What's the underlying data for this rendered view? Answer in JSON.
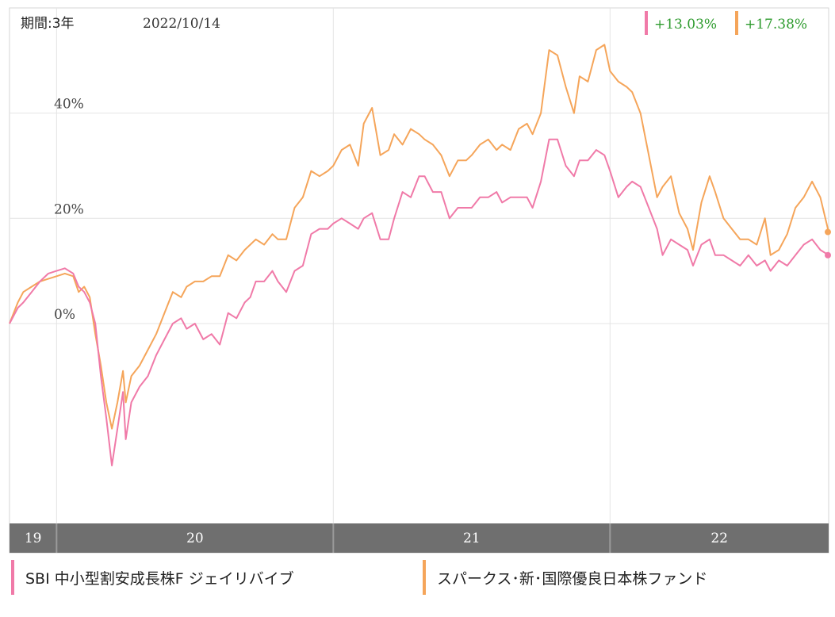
{
  "header": {
    "period_label": "期間:3年",
    "date_label": "2022/10/14"
  },
  "colors": {
    "pink": "#f07aa8",
    "orange": "#f5a55a",
    "return_text": "#2e9b2e",
    "grid": "#e4e4e4",
    "axis_band": "#6f6f6f"
  },
  "chart_data": {
    "type": "line",
    "ylim": [
      -38,
      60
    ],
    "xlim": [
      2019.83,
      2022.79
    ],
    "y_ticks": [
      {
        "value": 0,
        "label": "0%"
      },
      {
        "value": 20,
        "label": "20%"
      },
      {
        "value": 40,
        "label": "40%"
      }
    ],
    "x_ticks": [
      {
        "start": 2019.83,
        "end": 2020.0,
        "label": "19"
      },
      {
        "start": 2020.0,
        "end": 2021.0,
        "label": "20"
      },
      {
        "start": 2021.0,
        "end": 2022.0,
        "label": "21"
      },
      {
        "start": 2022.0,
        "end": 2022.79,
        "label": "22"
      }
    ],
    "series": [
      {
        "name": "SBI 中小型割安成長株F ジェイリバイブ",
        "color": "#f07aa8",
        "final_return": "+13.03%",
        "points": [
          [
            2019.83,
            0
          ],
          [
            2019.86,
            3
          ],
          [
            2019.88,
            4
          ],
          [
            2019.91,
            6
          ],
          [
            2019.94,
            8
          ],
          [
            2019.97,
            9.5
          ],
          [
            2020.0,
            10
          ],
          [
            2020.03,
            10.5
          ],
          [
            2020.06,
            9.5
          ],
          [
            2020.08,
            7
          ],
          [
            2020.1,
            6
          ],
          [
            2020.12,
            4
          ],
          [
            2020.14,
            0
          ],
          [
            2020.16,
            -10
          ],
          [
            2020.18,
            -18
          ],
          [
            2020.2,
            -27
          ],
          [
            2020.22,
            -20
          ],
          [
            2020.24,
            -13
          ],
          [
            2020.25,
            -22
          ],
          [
            2020.27,
            -15
          ],
          [
            2020.3,
            -12
          ],
          [
            2020.33,
            -10
          ],
          [
            2020.36,
            -6
          ],
          [
            2020.39,
            -3
          ],
          [
            2020.42,
            0
          ],
          [
            2020.45,
            1
          ],
          [
            2020.47,
            -1
          ],
          [
            2020.5,
            0
          ],
          [
            2020.53,
            -3
          ],
          [
            2020.56,
            -2
          ],
          [
            2020.59,
            -4
          ],
          [
            2020.62,
            2
          ],
          [
            2020.65,
            1
          ],
          [
            2020.68,
            4
          ],
          [
            2020.7,
            5
          ],
          [
            2020.72,
            8
          ],
          [
            2020.75,
            8
          ],
          [
            2020.78,
            10
          ],
          [
            2020.8,
            8
          ],
          [
            2020.83,
            6
          ],
          [
            2020.86,
            10
          ],
          [
            2020.89,
            11
          ],
          [
            2020.92,
            17
          ],
          [
            2020.95,
            18
          ],
          [
            2020.98,
            18
          ],
          [
            2021.0,
            19
          ],
          [
            2021.03,
            20
          ],
          [
            2021.06,
            19
          ],
          [
            2021.09,
            18
          ],
          [
            2021.11,
            20
          ],
          [
            2021.14,
            21
          ],
          [
            2021.17,
            16
          ],
          [
            2021.2,
            16
          ],
          [
            2021.22,
            20
          ],
          [
            2021.25,
            25
          ],
          [
            2021.28,
            24
          ],
          [
            2021.31,
            28
          ],
          [
            2021.33,
            28
          ],
          [
            2021.36,
            25
          ],
          [
            2021.39,
            25
          ],
          [
            2021.42,
            20
          ],
          [
            2021.45,
            22
          ],
          [
            2021.48,
            22
          ],
          [
            2021.5,
            22
          ],
          [
            2021.53,
            24
          ],
          [
            2021.56,
            24
          ],
          [
            2021.59,
            25
          ],
          [
            2021.61,
            23
          ],
          [
            2021.64,
            24
          ],
          [
            2021.67,
            24
          ],
          [
            2021.7,
            24
          ],
          [
            2021.72,
            22
          ],
          [
            2021.75,
            27
          ],
          [
            2021.78,
            35
          ],
          [
            2021.81,
            35
          ],
          [
            2021.84,
            30
          ],
          [
            2021.87,
            28
          ],
          [
            2021.89,
            31
          ],
          [
            2021.92,
            31
          ],
          [
            2021.95,
            33
          ],
          [
            2021.98,
            32
          ],
          [
            2022.0,
            29
          ],
          [
            2022.03,
            24
          ],
          [
            2022.06,
            26
          ],
          [
            2022.08,
            27
          ],
          [
            2022.11,
            26
          ],
          [
            2022.14,
            22
          ],
          [
            2022.17,
            18
          ],
          [
            2022.19,
            13
          ],
          [
            2022.22,
            16
          ],
          [
            2022.25,
            15
          ],
          [
            2022.28,
            14
          ],
          [
            2022.3,
            11
          ],
          [
            2022.33,
            15
          ],
          [
            2022.36,
            16
          ],
          [
            2022.38,
            13
          ],
          [
            2022.41,
            13
          ],
          [
            2022.44,
            12
          ],
          [
            2022.47,
            11
          ],
          [
            2022.5,
            13
          ],
          [
            2022.53,
            11
          ],
          [
            2022.56,
            12
          ],
          [
            2022.58,
            10
          ],
          [
            2022.61,
            12
          ],
          [
            2022.64,
            11
          ],
          [
            2022.67,
            13
          ],
          [
            2022.7,
            15
          ],
          [
            2022.73,
            16
          ],
          [
            2022.76,
            14
          ],
          [
            2022.79,
            13
          ]
        ]
      },
      {
        "name": "スパークス･新･国際優良日本株ファンド",
        "color": "#f5a55a",
        "final_return": "+17.38%",
        "points": [
          [
            2019.83,
            0
          ],
          [
            2019.86,
            4
          ],
          [
            2019.88,
            6
          ],
          [
            2019.91,
            7
          ],
          [
            2019.94,
            8
          ],
          [
            2019.97,
            8.5
          ],
          [
            2020.0,
            9
          ],
          [
            2020.03,
            9.5
          ],
          [
            2020.06,
            9
          ],
          [
            2020.08,
            6
          ],
          [
            2020.1,
            7
          ],
          [
            2020.12,
            5
          ],
          [
            2020.14,
            -2
          ],
          [
            2020.16,
            -8
          ],
          [
            2020.18,
            -15
          ],
          [
            2020.2,
            -20
          ],
          [
            2020.22,
            -15
          ],
          [
            2020.24,
            -9
          ],
          [
            2020.25,
            -15
          ],
          [
            2020.27,
            -10
          ],
          [
            2020.3,
            -8
          ],
          [
            2020.33,
            -5
          ],
          [
            2020.36,
            -2
          ],
          [
            2020.39,
            2
          ],
          [
            2020.42,
            6
          ],
          [
            2020.45,
            5
          ],
          [
            2020.47,
            7
          ],
          [
            2020.5,
            8
          ],
          [
            2020.53,
            8
          ],
          [
            2020.56,
            9
          ],
          [
            2020.59,
            9
          ],
          [
            2020.62,
            13
          ],
          [
            2020.65,
            12
          ],
          [
            2020.68,
            14
          ],
          [
            2020.7,
            15
          ],
          [
            2020.72,
            16
          ],
          [
            2020.75,
            15
          ],
          [
            2020.78,
            17
          ],
          [
            2020.8,
            16
          ],
          [
            2020.83,
            16
          ],
          [
            2020.86,
            22
          ],
          [
            2020.89,
            24
          ],
          [
            2020.92,
            29
          ],
          [
            2020.95,
            28
          ],
          [
            2020.98,
            29
          ],
          [
            2021.0,
            30
          ],
          [
            2021.03,
            33
          ],
          [
            2021.06,
            34
          ],
          [
            2021.09,
            30
          ],
          [
            2021.11,
            38
          ],
          [
            2021.14,
            41
          ],
          [
            2021.17,
            32
          ],
          [
            2021.2,
            33
          ],
          [
            2021.22,
            36
          ],
          [
            2021.25,
            34
          ],
          [
            2021.28,
            37
          ],
          [
            2021.31,
            36
          ],
          [
            2021.33,
            35
          ],
          [
            2021.36,
            34
          ],
          [
            2021.39,
            32
          ],
          [
            2021.42,
            28
          ],
          [
            2021.45,
            31
          ],
          [
            2021.48,
            31
          ],
          [
            2021.5,
            32
          ],
          [
            2021.53,
            34
          ],
          [
            2021.56,
            35
          ],
          [
            2021.59,
            33
          ],
          [
            2021.61,
            34
          ],
          [
            2021.64,
            33
          ],
          [
            2021.67,
            37
          ],
          [
            2021.7,
            38
          ],
          [
            2021.72,
            36
          ],
          [
            2021.75,
            40
          ],
          [
            2021.78,
            52
          ],
          [
            2021.81,
            51
          ],
          [
            2021.84,
            45
          ],
          [
            2021.87,
            40
          ],
          [
            2021.89,
            47
          ],
          [
            2021.92,
            46
          ],
          [
            2021.95,
            52
          ],
          [
            2021.98,
            53
          ],
          [
            2022.0,
            48
          ],
          [
            2022.03,
            46
          ],
          [
            2022.06,
            45
          ],
          [
            2022.08,
            44
          ],
          [
            2022.11,
            40
          ],
          [
            2022.14,
            32
          ],
          [
            2022.17,
            24
          ],
          [
            2022.19,
            26
          ],
          [
            2022.22,
            28
          ],
          [
            2022.25,
            21
          ],
          [
            2022.28,
            18
          ],
          [
            2022.3,
            14
          ],
          [
            2022.33,
            23
          ],
          [
            2022.36,
            28
          ],
          [
            2022.38,
            25
          ],
          [
            2022.41,
            20
          ],
          [
            2022.44,
            18
          ],
          [
            2022.47,
            16
          ],
          [
            2022.5,
            16
          ],
          [
            2022.53,
            15
          ],
          [
            2022.56,
            20
          ],
          [
            2022.58,
            13
          ],
          [
            2022.61,
            14
          ],
          [
            2022.64,
            17
          ],
          [
            2022.67,
            22
          ],
          [
            2022.7,
            24
          ],
          [
            2022.73,
            27
          ],
          [
            2022.76,
            24
          ],
          [
            2022.79,
            17.4
          ]
        ]
      }
    ]
  }
}
